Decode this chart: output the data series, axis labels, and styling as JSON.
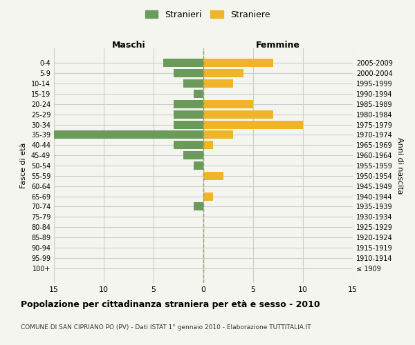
{
  "age_groups": [
    "100+",
    "95-99",
    "90-94",
    "85-89",
    "80-84",
    "75-79",
    "70-74",
    "65-69",
    "60-64",
    "55-59",
    "50-54",
    "45-49",
    "40-44",
    "35-39",
    "30-34",
    "25-29",
    "20-24",
    "15-19",
    "10-14",
    "5-9",
    "0-4"
  ],
  "birth_years": [
    "≤ 1909",
    "1910-1914",
    "1915-1919",
    "1920-1924",
    "1925-1929",
    "1930-1934",
    "1935-1939",
    "1940-1944",
    "1945-1949",
    "1950-1954",
    "1955-1959",
    "1960-1964",
    "1965-1969",
    "1970-1974",
    "1975-1979",
    "1980-1984",
    "1985-1989",
    "1990-1994",
    "1995-1999",
    "2000-2004",
    "2005-2009"
  ],
  "maschi": [
    0,
    0,
    0,
    0,
    0,
    0,
    1,
    0,
    0,
    0,
    1,
    2,
    3,
    15,
    3,
    3,
    3,
    1,
    2,
    3,
    4
  ],
  "femmine": [
    0,
    0,
    0,
    0,
    0,
    0,
    0,
    1,
    0,
    2,
    0,
    0,
    1,
    3,
    10,
    7,
    5,
    0,
    3,
    4,
    7
  ],
  "maschi_color": "#6a9b5a",
  "femmine_color": "#f0b429",
  "background_color": "#f5f5f0",
  "grid_color": "#cccccc",
  "bar_height": 0.8,
  "xlim": 15,
  "title": "Popolazione per cittadinanza straniera per età e sesso - 2010",
  "subtitle": "COMUNE DI SAN CIPRIANO PO (PV) - Dati ISTAT 1° gennaio 2010 - Elaborazione TUTTITALIA.IT",
  "ylabel_left": "Fasce di età",
  "ylabel_right": "Anni di nascita",
  "label_maschi": "Maschi",
  "label_femmine": "Femmine",
  "legend_stranieri": "Stranieri",
  "legend_straniere": "Straniere",
  "xticks": [
    15,
    10,
    5,
    0,
    5,
    10,
    15
  ],
  "xtick_labels": [
    "15",
    "10",
    "5",
    "0",
    "5",
    "10",
    "15"
  ]
}
